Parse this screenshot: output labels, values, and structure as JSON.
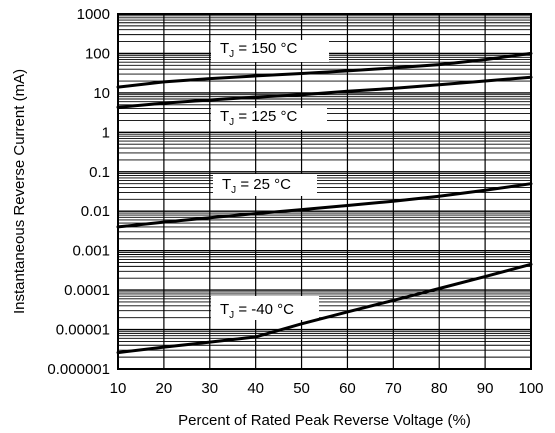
{
  "chart_data": {
    "type": "line",
    "xlabel": "Percent of Rated Peak Reverse Voltage (%)",
    "ylabel": "Instantaneous Reverse Current (mA)",
    "xlim": [
      10,
      100
    ],
    "ylim": [
      1e-06,
      1000
    ],
    "y_scale": "log",
    "grid": true,
    "x_ticks": [
      "10",
      "20",
      "30",
      "40",
      "50",
      "60",
      "70",
      "80",
      "90",
      "100"
    ],
    "y_ticks": [
      "0.000001",
      "0.00001",
      "0.0001",
      "0.001",
      "0.01",
      "0.1",
      "1",
      "10",
      "100",
      "1000"
    ],
    "series": [
      {
        "name": "T_J = 150 °C",
        "label_main": "T",
        "label_sub": "J",
        "label_rest": " = 150 °C",
        "x": [
          10,
          20,
          30,
          40,
          50,
          60,
          70,
          80,
          90,
          100
        ],
        "y": [
          14,
          19,
          23,
          27,
          31,
          36,
          43,
          52,
          70,
          100
        ]
      },
      {
        "name": "T_J = 125 °C",
        "label_main": "T",
        "label_sub": "J",
        "label_rest": " = 125 °C",
        "x": [
          10,
          20,
          30,
          40,
          50,
          60,
          70,
          80,
          90,
          100
        ],
        "y": [
          4.3,
          5.5,
          6.6,
          7.8,
          9,
          11,
          13,
          16,
          20,
          25
        ]
      },
      {
        "name": "T_J = 25 °C",
        "label_main": "T",
        "label_sub": "J",
        "label_rest": " = 25 °C",
        "x": [
          10,
          20,
          30,
          40,
          50,
          60,
          70,
          80,
          90,
          100
        ],
        "y": [
          0.004,
          0.0053,
          0.0068,
          0.0087,
          0.011,
          0.014,
          0.018,
          0.024,
          0.034,
          0.05
        ]
      },
      {
        "name": "T_J = -40 °C",
        "label_main": "T",
        "label_sub": "J",
        "label_rest": " = -40 °C",
        "x": [
          10,
          20,
          30,
          40,
          50,
          60,
          70,
          80,
          90,
          100
        ],
        "y": [
          2.6e-06,
          3.6e-06,
          4.8e-06,
          6.5e-06,
          1.4e-05,
          2.8e-05,
          5.5e-05,
          0.00011,
          0.00022,
          0.00045
        ]
      }
    ]
  }
}
